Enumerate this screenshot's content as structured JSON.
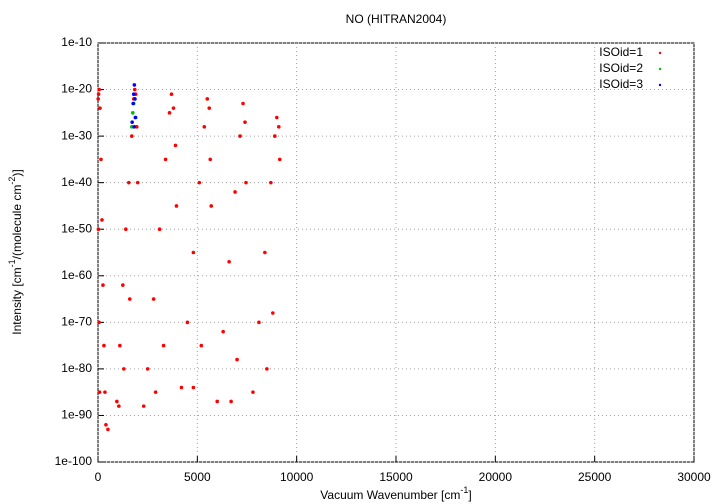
{
  "chart_data": {
    "type": "scatter",
    "title": "NO (HITRAN2004)",
    "xlabel": [
      "Vacuum Wavenumber [cm",
      "-1",
      "]"
    ],
    "ylabel": [
      "Intensity [cm",
      "-1",
      "/(molecule cm",
      "-2",
      ")]"
    ],
    "xlim": [
      0,
      30000
    ],
    "xticks": [
      0,
      5000,
      10000,
      15000,
      20000,
      25000,
      30000
    ],
    "ylim": [
      1e-100,
      1e-10
    ],
    "ylog": true,
    "yticks": [
      {
        "value": 1e-100,
        "label": "1e-100"
      },
      {
        "value": 1e-90,
        "label": "1e-90"
      },
      {
        "value": 1e-80,
        "label": "1e-80"
      },
      {
        "value": 1e-70,
        "label": "1e-70"
      },
      {
        "value": 1e-60,
        "label": "1e-60"
      },
      {
        "value": 1e-50,
        "label": "1e-50"
      },
      {
        "value": 1e-40,
        "label": "1e-40"
      },
      {
        "value": 1e-30,
        "label": "1e-30"
      },
      {
        "value": 1e-20,
        "label": "1e-20"
      },
      {
        "value": 1e-10,
        "label": "1e-10"
      }
    ],
    "grid": true,
    "legend": "top-right",
    "series": [
      {
        "name": "ISOid=1",
        "color": "#ff0000",
        "x": [
          10,
          30,
          60,
          100,
          150,
          200,
          250,
          300,
          350,
          400,
          500,
          20,
          50,
          80,
          950,
          1100,
          1250,
          1400,
          1550,
          1700,
          1800,
          1850,
          1900,
          1950,
          2000,
          1050,
          1300,
          1600,
          2300,
          2500,
          2800,
          3100,
          3400,
          3600,
          3700,
          3800,
          3900,
          3950,
          2900,
          3300,
          4200,
          4500,
          4800,
          5100,
          5350,
          5500,
          5600,
          5650,
          5700,
          4800,
          5200,
          6000,
          6300,
          6600,
          6900,
          7150,
          7300,
          7400,
          7450,
          6700,
          7000,
          7800,
          8100,
          8400,
          8700,
          8900,
          9000,
          9100,
          9150,
          8500,
          8800
        ],
        "values": [
          1e-22,
          1e-21,
          1e-20,
          1e-24,
          1e-35,
          1e-48,
          1e-62,
          1e-75,
          1e-85,
          1e-92,
          1e-93,
          1e-50,
          1e-70,
          1e-85,
          1e-87,
          1e-75,
          1e-62,
          1e-50,
          1e-40,
          1e-30,
          1e-22,
          1e-20,
          1e-21,
          1e-28,
          1e-40,
          1e-88,
          1e-80,
          1e-65,
          1e-88,
          1e-80,
          1e-65,
          1e-50,
          1e-35,
          1e-25,
          1e-21,
          1e-24,
          1e-32,
          1e-45,
          1e-85,
          1e-75,
          1e-84,
          1e-70,
          1e-55,
          1e-40,
          1e-28,
          1e-22,
          1e-24,
          1e-35,
          1e-45,
          1e-84,
          1e-75,
          1e-87,
          1e-72,
          1e-57,
          1e-42,
          1e-30,
          1e-23,
          1e-27,
          1e-40,
          1e-87,
          1e-78,
          1e-85,
          1e-70,
          1e-55,
          1e-40,
          1e-30,
          1e-26,
          1e-28,
          1e-35,
          1e-80,
          1e-68
        ]
      },
      {
        "name": "ISOid=2",
        "color": "#00c000",
        "x": [
          1700,
          1750,
          1800,
          1850,
          1900
        ],
        "values": [
          1e-28,
          1e-25,
          1e-23,
          1e-22,
          1e-26
        ]
      },
      {
        "name": "ISOid=3",
        "color": "#0000ff",
        "x": [
          1720,
          1770,
          1800,
          1830,
          1860,
          1880,
          1820
        ],
        "values": [
          1e-27,
          1e-23,
          1e-21,
          1e-19,
          1e-22,
          1e-26,
          1e-28
        ]
      }
    ]
  }
}
